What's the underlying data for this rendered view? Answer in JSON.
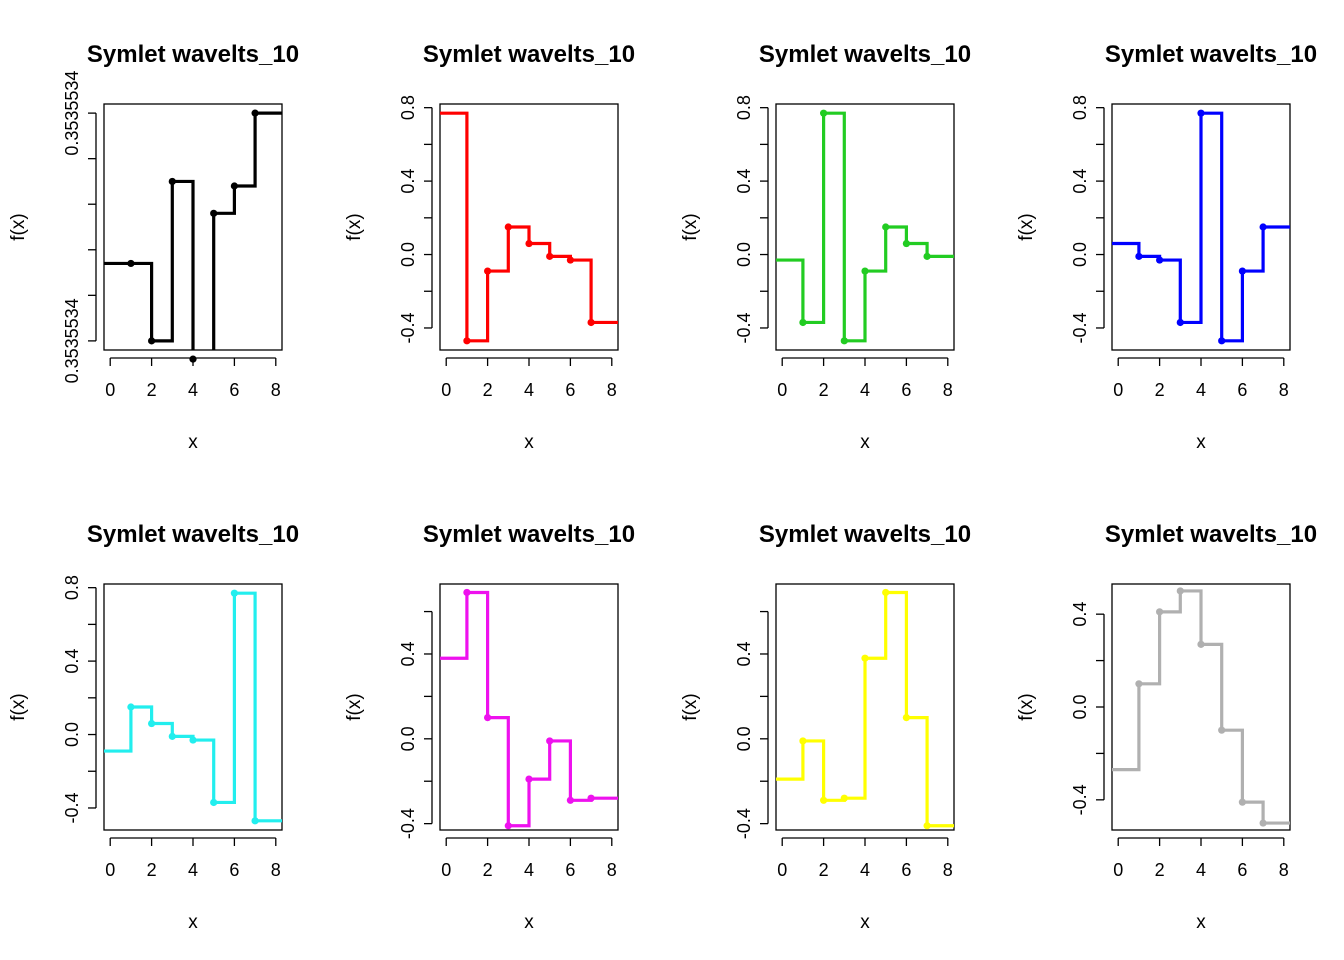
{
  "chart_data": [
    {
      "type": "line",
      "title": "Symlet wavelts_10",
      "xlabel": "x",
      "ylabel": "f(x)",
      "xlim": [
        -0.3,
        8.3
      ],
      "ylim": [
        0.353553378,
        0.353553432
      ],
      "x_ticks": [
        0,
        2,
        4,
        6,
        8
      ],
      "y_ticks": [
        0.35355338,
        0.35355339,
        0.3535534,
        0.35355341,
        0.35355342,
        0.35355343
      ],
      "y_tick_labels": [
        "0.3535534",
        "",
        "",
        "",
        "",
        "0.3535534"
      ],
      "color": "#000000",
      "x": [
        1,
        2,
        3,
        4,
        5,
        6,
        7
      ],
      "y": [
        0.353553397,
        0.35355338,
        0.353553415,
        0.353553376,
        0.353553408,
        0.353553414,
        0.35355343
      ],
      "step_start": 0.353553397,
      "step_end": 0.35355343
    },
    {
      "type": "line",
      "title": "Symlet wavelts_10",
      "xlabel": "x",
      "ylabel": "f(x)",
      "xlim": [
        -0.3,
        8.3
      ],
      "ylim": [
        -0.52,
        0.82
      ],
      "x_ticks": [
        0,
        2,
        4,
        6,
        8
      ],
      "y_ticks": [
        -0.4,
        -0.2,
        0.0,
        0.2,
        0.4,
        0.6,
        0.8
      ],
      "y_tick_labels": [
        "-0.4",
        "",
        "0.0",
        "",
        "0.4",
        "",
        "0.8"
      ],
      "color": "#ff0000",
      "x": [
        1,
        2,
        3,
        4,
        5,
        6,
        7
      ],
      "y": [
        -0.47,
        -0.09,
        0.15,
        0.06,
        -0.01,
        -0.03,
        -0.37
      ],
      "step_start": 0.77,
      "step_end": -0.37
    },
    {
      "type": "line",
      "title": "Symlet wavelts_10",
      "xlabel": "x",
      "ylabel": "f(x)",
      "xlim": [
        -0.3,
        8.3
      ],
      "ylim": [
        -0.52,
        0.82
      ],
      "x_ticks": [
        0,
        2,
        4,
        6,
        8
      ],
      "y_ticks": [
        -0.4,
        -0.2,
        0.0,
        0.2,
        0.4,
        0.6,
        0.8
      ],
      "y_tick_labels": [
        "-0.4",
        "",
        "0.0",
        "",
        "0.4",
        "",
        "0.8"
      ],
      "color": "#22cc22",
      "x": [
        1,
        2,
        3,
        4,
        5,
        6,
        7
      ],
      "y": [
        -0.37,
        0.77,
        -0.47,
        -0.09,
        0.15,
        0.06,
        -0.01
      ],
      "step_start": -0.03,
      "step_end": -0.01
    },
    {
      "type": "line",
      "title": "Symlet wavelts_10",
      "xlabel": "x",
      "ylabel": "f(x)",
      "xlim": [
        -0.3,
        8.3
      ],
      "ylim": [
        -0.52,
        0.82
      ],
      "x_ticks": [
        0,
        2,
        4,
        6,
        8
      ],
      "y_ticks": [
        -0.4,
        -0.2,
        0.0,
        0.2,
        0.4,
        0.6,
        0.8
      ],
      "y_tick_labels": [
        "-0.4",
        "",
        "0.0",
        "",
        "0.4",
        "",
        "0.8"
      ],
      "color": "#0000ff",
      "x": [
        1,
        2,
        3,
        4,
        5,
        6,
        7
      ],
      "y": [
        -0.01,
        -0.03,
        -0.37,
        0.77,
        -0.47,
        -0.09,
        0.15
      ],
      "step_start": 0.06,
      "step_end": 0.15
    },
    {
      "type": "line",
      "title": "Symlet wavelts_10",
      "xlabel": "x",
      "ylabel": "f(x)",
      "xlim": [
        -0.3,
        8.3
      ],
      "ylim": [
        -0.52,
        0.82
      ],
      "x_ticks": [
        0,
        2,
        4,
        6,
        8
      ],
      "y_ticks": [
        -0.4,
        -0.2,
        0.0,
        0.2,
        0.4,
        0.6,
        0.8
      ],
      "y_tick_labels": [
        "-0.4",
        "",
        "0.0",
        "",
        "0.4",
        "",
        "0.8"
      ],
      "color": "#22eeee",
      "x": [
        1,
        2,
        3,
        4,
        5,
        6,
        7
      ],
      "y": [
        0.15,
        0.06,
        -0.01,
        -0.03,
        -0.37,
        0.77,
        -0.47
      ],
      "step_start": -0.09,
      "step_end": -0.47
    },
    {
      "type": "line",
      "title": "Symlet wavelts_10",
      "xlabel": "x",
      "ylabel": "f(x)",
      "xlim": [
        -0.3,
        8.3
      ],
      "ylim": [
        -0.43,
        0.73
      ],
      "x_ticks": [
        0,
        2,
        4,
        6,
        8
      ],
      "y_ticks": [
        -0.4,
        -0.2,
        0.0,
        0.2,
        0.4,
        0.6
      ],
      "y_tick_labels": [
        "-0.4",
        "",
        "0.0",
        "",
        "0.4",
        ""
      ],
      "color": "#ee11ee",
      "x": [
        1,
        2,
        3,
        4,
        5,
        6,
        7
      ],
      "y": [
        0.69,
        0.1,
        -0.41,
        -0.19,
        -0.01,
        -0.29,
        -0.28
      ],
      "step_start": 0.38,
      "step_end": -0.28
    },
    {
      "type": "line",
      "title": "Symlet wavelts_10",
      "xlabel": "x",
      "ylabel": "f(x)",
      "xlim": [
        -0.3,
        8.3
      ],
      "ylim": [
        -0.43,
        0.73
      ],
      "x_ticks": [
        0,
        2,
        4,
        6,
        8
      ],
      "y_ticks": [
        -0.4,
        -0.2,
        0.0,
        0.2,
        0.4,
        0.6
      ],
      "y_tick_labels": [
        "-0.4",
        "",
        "0.0",
        "",
        "0.4",
        ""
      ],
      "color": "#ffff00",
      "x": [
        1,
        2,
        3,
        4,
        5,
        6,
        7
      ],
      "y": [
        -0.01,
        -0.29,
        -0.28,
        0.38,
        0.69,
        0.1,
        -0.41
      ],
      "step_start": -0.19,
      "step_end": -0.41
    },
    {
      "type": "line",
      "title": "Symlet wavelts_10",
      "xlabel": "x",
      "ylabel": "f(x)",
      "xlim": [
        -0.3,
        8.3
      ],
      "ylim": [
        -0.53,
        0.53
      ],
      "x_ticks": [
        0,
        2,
        4,
        6,
        8
      ],
      "y_ticks": [
        -0.4,
        -0.2,
        0.0,
        0.2,
        0.4
      ],
      "y_tick_labels": [
        "-0.4",
        "",
        "0.0",
        "",
        "0.4"
      ],
      "color": "#b0b0b0",
      "x": [
        1,
        2,
        3,
        4,
        5,
        6,
        7
      ],
      "y": [
        0.1,
        0.41,
        0.5,
        0.27,
        -0.1,
        -0.41,
        -0.5
      ],
      "step_start": -0.27,
      "step_end": -0.5
    }
  ]
}
